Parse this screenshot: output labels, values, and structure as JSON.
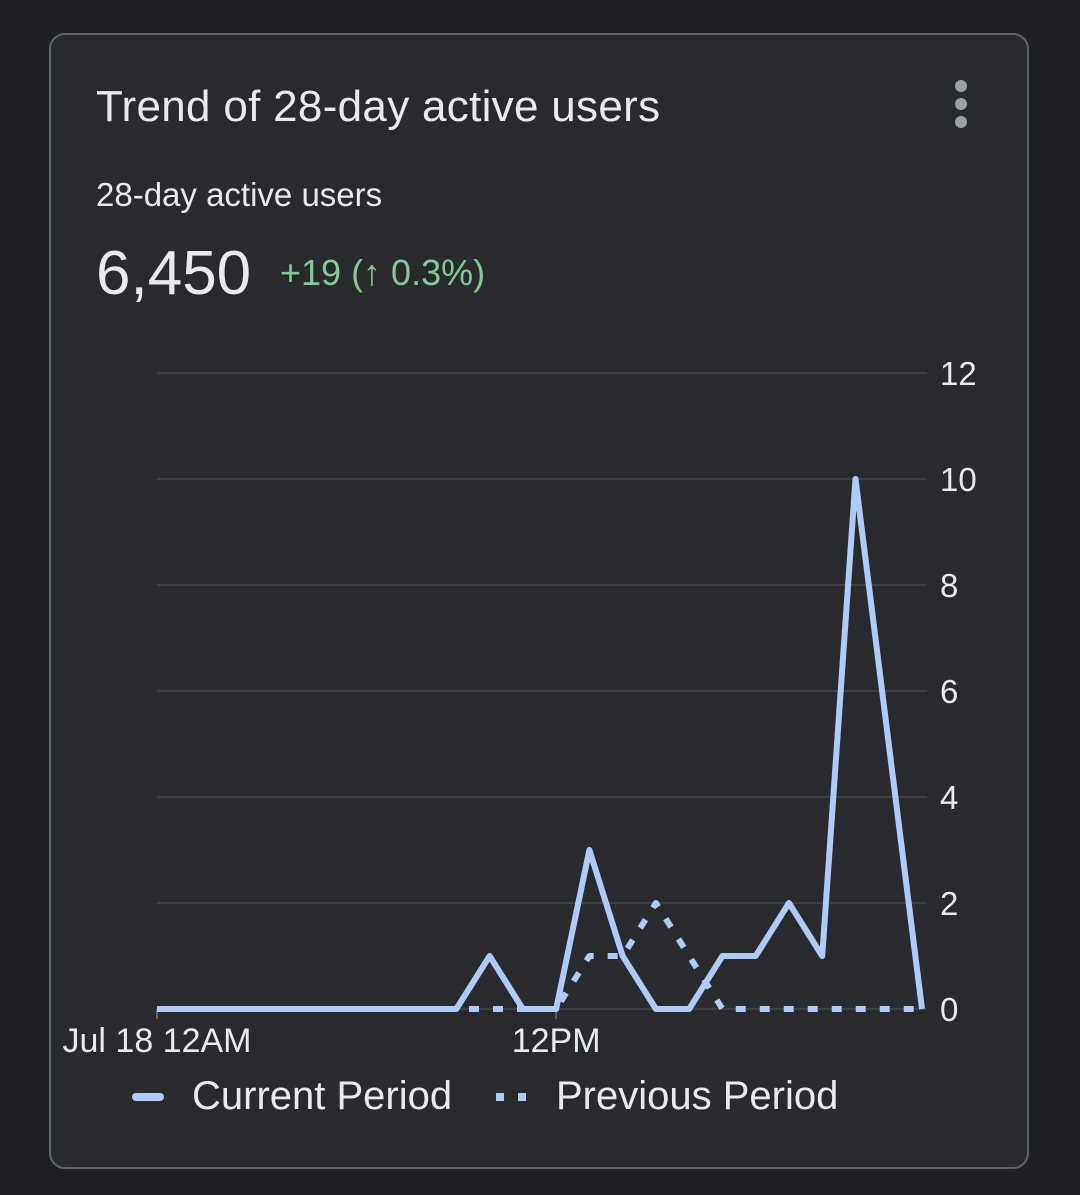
{
  "card": {
    "title": "Trend of 28-day active users",
    "menu_icon": "more-vert-icon",
    "metric_label": "28-day active users",
    "metric_value": "6,450",
    "delta": "+19 (↑ 0.3%)"
  },
  "colors": {
    "line": "#aecbfa",
    "delta": "#81c995",
    "grid": "#3c4043"
  },
  "chart_data": {
    "type": "line",
    "title": "Trend of 28-day active users",
    "x": [
      0,
      1,
      2,
      3,
      4,
      5,
      6,
      7,
      8,
      9,
      10,
      11,
      12,
      13,
      14,
      15,
      16,
      17,
      18,
      19,
      20,
      21,
      22,
      23
    ],
    "x_tick_labels": [
      {
        "at": 0,
        "label": "Jul 18 12AM"
      },
      {
        "at": 12,
        "label": "12PM"
      }
    ],
    "y_ticks": [
      "0",
      "2",
      "4",
      "6",
      "8",
      "10",
      "12"
    ],
    "ylim": [
      0,
      12
    ],
    "y_axis_position": "right",
    "grid": true,
    "legend_placement": "bottom",
    "series": [
      {
        "name": "Current Period",
        "style": "solid",
        "values": [
          0,
          0,
          0,
          0,
          0,
          0,
          0,
          0,
          0,
          0,
          1,
          0,
          0,
          3,
          1,
          0,
          0,
          1,
          1,
          2,
          1,
          10,
          5,
          0
        ]
      },
      {
        "name": "Previous Period",
        "style": "dotted",
        "values": [
          0,
          0,
          0,
          0,
          0,
          0,
          0,
          0,
          0,
          0,
          0,
          0,
          0,
          1,
          1,
          2,
          1,
          0,
          0,
          0,
          0,
          0,
          0,
          0
        ]
      }
    ]
  }
}
